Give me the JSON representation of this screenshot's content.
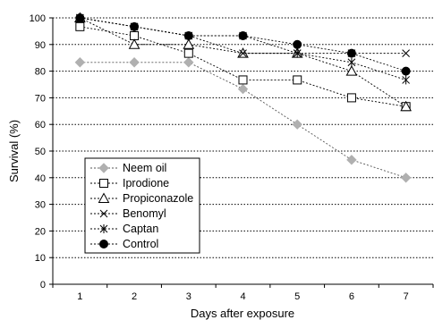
{
  "chart_data": {
    "type": "line",
    "xlabel": "Days after exposure",
    "ylabel": "Survival (%)",
    "x": [
      1,
      2,
      3,
      4,
      5,
      6,
      7
    ],
    "ylim": [
      0,
      100
    ],
    "yticks": [
      "0",
      "10",
      "20",
      "30",
      "40",
      "50",
      "60",
      "70",
      "80",
      "90",
      "100"
    ],
    "xticks": [
      "1",
      "2",
      "3",
      "4",
      "5",
      "6",
      "7"
    ],
    "grid": "horizontal dotted",
    "legend_position": "bottom-left",
    "series": [
      {
        "name": "Neem oil",
        "marker": "diamond",
        "color": "#b0b0b0",
        "values": [
          83.3,
          83.3,
          83.3,
          73.3,
          60,
          46.7,
          40
        ]
      },
      {
        "name": "Iprodione",
        "marker": "square-open",
        "color": "#000000",
        "values": [
          96.7,
          93.3,
          86.7,
          76.7,
          76.7,
          70,
          66.7
        ]
      },
      {
        "name": "Propiconazole",
        "marker": "triangle-open",
        "color": "#000000",
        "values": [
          100,
          90,
          90,
          86.7,
          86.7,
          80,
          66.7
        ]
      },
      {
        "name": "Benomyl",
        "marker": "x",
        "color": "#000000",
        "values": [
          100,
          96.7,
          93.3,
          86.7,
          86.7,
          86.7,
          86.7
        ]
      },
      {
        "name": "Captan",
        "marker": "asterisk",
        "color": "#000000",
        "values": [
          100,
          96.7,
          93.3,
          93.3,
          86.7,
          83.3,
          76.7
        ]
      },
      {
        "name": "Control",
        "marker": "circle-filled",
        "color": "#000000",
        "values": [
          100,
          96.7,
          93.3,
          93.3,
          90,
          86.7,
          80
        ]
      }
    ]
  }
}
